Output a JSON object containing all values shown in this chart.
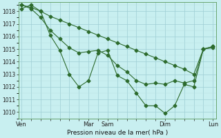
{
  "xlabel": "Pression niveau de la mer( hPa )",
  "bg_color": "#c8eff0",
  "grid_major_color": "#9ecdd4",
  "grid_minor_color": "#b8dde0",
  "line_color": "#2d6b2d",
  "ylim": [
    1009.5,
    1018.7
  ],
  "yticks": [
    1010,
    1011,
    1012,
    1013,
    1014,
    1015,
    1016,
    1017,
    1018
  ],
  "xtick_labels": [
    "Ven",
    "",
    "Mar",
    "Sam",
    "",
    "Dim",
    "",
    "Lun"
  ],
  "xtick_positions": [
    0,
    3,
    7,
    9,
    13,
    15,
    18,
    20
  ],
  "xlim": [
    -0.3,
    20.3
  ],
  "series_volatile": [
    1018.2,
    1018.5,
    1018.0,
    1016.1,
    1014.9,
    1013.0,
    1012.0,
    1012.5,
    1014.7,
    1014.9,
    1012.9,
    1012.5,
    1011.5,
    1010.5,
    1010.5,
    1009.9,
    1010.5,
    1012.2,
    1012.0,
    1015.0,
    1015.1
  ],
  "series_medium": [
    1018.5,
    1018.2,
    1017.5,
    1016.5,
    1015.8,
    1015.1,
    1014.7,
    1014.8,
    1014.9,
    1014.5,
    1013.7,
    1013.2,
    1012.5,
    1012.2,
    1012.3,
    1012.2,
    1012.5,
    1012.3,
    1012.5,
    1015.0,
    1015.2
  ],
  "series_smooth": [
    1018.5,
    1018.3,
    1018.0,
    1017.6,
    1017.3,
    1017.0,
    1016.7,
    1016.4,
    1016.1,
    1015.8,
    1015.5,
    1015.2,
    1014.9,
    1014.6,
    1014.3,
    1014.0,
    1013.7,
    1013.4,
    1013.0,
    1015.0,
    1015.2
  ],
  "n": 21
}
